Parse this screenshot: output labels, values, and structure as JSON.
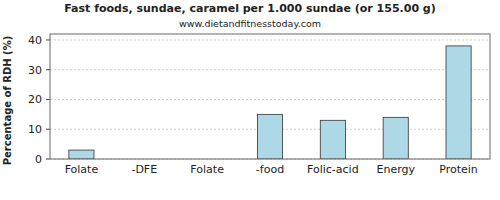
{
  "chart_data": {
    "type": "bar",
    "title": "Fast foods, sundae, caramel per 1.000 sundae (or 155.00 g)",
    "subtitle": "www.dietandfitnesstoday.com",
    "y_label": "Percentage of RDH (%)",
    "categories": [
      "Folate",
      "-DFE",
      "Folate",
      "-food",
      "Folic-acid",
      "Energy",
      "Protein"
    ],
    "values": [
      3,
      0,
      0,
      15,
      13,
      14,
      38
    ],
    "color": "#add8e6",
    "ylim": [
      0,
      42
    ],
    "yticks": [
      0,
      10,
      20,
      30,
      40
    ],
    "grid": true
  }
}
